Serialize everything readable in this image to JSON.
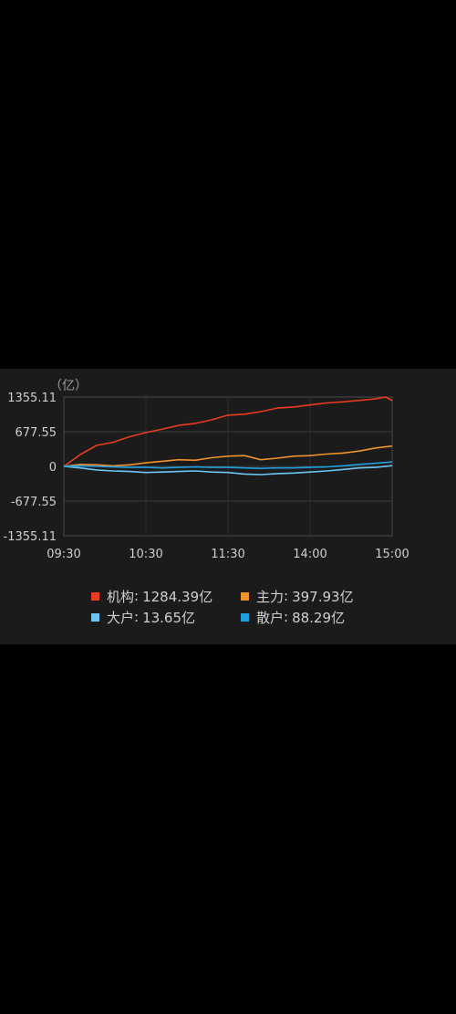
{
  "chart_data": {
    "type": "line",
    "unit_label": "（亿）",
    "ylim": [
      -1355.11,
      1355.11
    ],
    "y_ticks": [
      "1355.11",
      "677.55",
      "0",
      "-677.55",
      "-1355.11"
    ],
    "x_ticks": [
      "09:30",
      "10:30",
      "11:30",
      "14:00",
      "15:00"
    ],
    "grid": true,
    "legend_position": "bottom",
    "series": [
      {
        "name": "机构",
        "value_label": "1284.39亿",
        "color": "#ea3b1e",
        "x": [
          0,
          0.05,
          0.1,
          0.15,
          0.2,
          0.25,
          0.3,
          0.35,
          0.4,
          0.45,
          0.5,
          0.55,
          0.6,
          0.65,
          0.7,
          0.75,
          0.8,
          0.85,
          0.9,
          0.95,
          0.98,
          1.0
        ],
        "values": [
          0,
          230,
          410,
          470,
          580,
          660,
          730,
          800,
          840,
          910,
          1000,
          1020,
          1070,
          1140,
          1160,
          1200,
          1240,
          1260,
          1290,
          1320,
          1355,
          1284
        ]
      },
      {
        "name": "主力",
        "value_label": "397.93亿",
        "color": "#f0922b",
        "x": [
          0,
          0.05,
          0.1,
          0.15,
          0.2,
          0.25,
          0.3,
          0.35,
          0.4,
          0.45,
          0.5,
          0.55,
          0.6,
          0.65,
          0.7,
          0.75,
          0.8,
          0.85,
          0.9,
          0.95,
          1.0
        ],
        "values": [
          0,
          40,
          30,
          10,
          30,
          70,
          100,
          130,
          120,
          170,
          200,
          210,
          130,
          160,
          200,
          210,
          240,
          260,
          300,
          360,
          398
        ]
      },
      {
        "name": "大户",
        "value_label": "13.65亿",
        "color": "#6cc6f5",
        "x": [
          0,
          0.05,
          0.1,
          0.15,
          0.2,
          0.25,
          0.3,
          0.35,
          0.4,
          0.45,
          0.5,
          0.55,
          0.6,
          0.65,
          0.7,
          0.75,
          0.8,
          0.85,
          0.9,
          0.95,
          1.0
        ],
        "values": [
          0,
          -30,
          -70,
          -90,
          -100,
          -120,
          -110,
          -100,
          -90,
          -110,
          -120,
          -150,
          -160,
          -140,
          -130,
          -110,
          -90,
          -60,
          -30,
          -20,
          14
        ]
      },
      {
        "name": "散户",
        "value_label": "88.29亿",
        "color": "#1f9ee0",
        "x": [
          0,
          0.05,
          0.1,
          0.15,
          0.2,
          0.25,
          0.3,
          0.35,
          0.4,
          0.45,
          0.5,
          0.55,
          0.6,
          0.65,
          0.7,
          0.75,
          0.8,
          0.85,
          0.9,
          0.95,
          1.0
        ],
        "values": [
          0,
          10,
          0,
          -10,
          -20,
          -20,
          -30,
          -20,
          -10,
          -20,
          -20,
          -30,
          -40,
          -30,
          -30,
          -20,
          -10,
          10,
          40,
          60,
          88
        ]
      }
    ]
  }
}
